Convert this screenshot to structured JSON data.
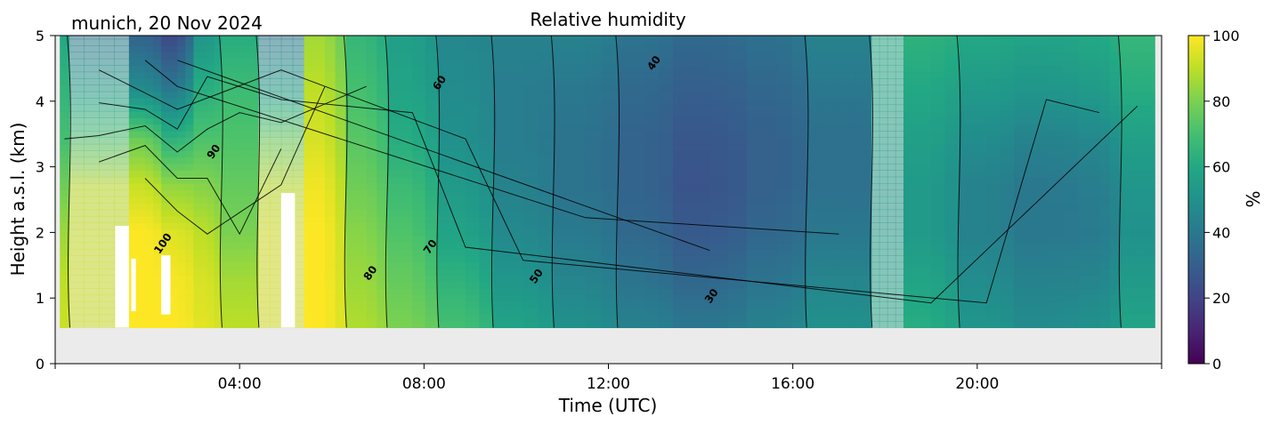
{
  "chart_data": {
    "type": "heatmap",
    "title": "Relative humidity",
    "subtitle": "munich, 20 Nov 2024",
    "xlabel": "Time (UTC)",
    "ylabel": "Height a.s.l. (km)",
    "xlim": [
      0,
      24
    ],
    "ylim": [
      0,
      5
    ],
    "xticks": [
      4,
      8,
      12,
      16,
      20
    ],
    "xtick_labels": [
      "04:00",
      "08:00",
      "12:00",
      "16:00",
      "20:00"
    ],
    "yticks": [
      0,
      1,
      2,
      3,
      4,
      5
    ],
    "ytick_labels": [
      "0",
      "1",
      "2",
      "3",
      "4",
      "5"
    ],
    "colorbar": {
      "label": "%",
      "range": [
        0,
        100
      ],
      "ticks": [
        0,
        20,
        40,
        60,
        80,
        100
      ],
      "tick_labels": [
        "0",
        "20",
        "40",
        "60",
        "80",
        "100"
      ],
      "colormap": "viridis"
    },
    "data_range_km": [
      0.55,
      5.0
    ],
    "data_range_time": [
      0.1,
      23.85
    ],
    "colors": {
      "no_data": "#ebebeb",
      "masked_white": "#ffffff"
    },
    "contour_levels": [
      {
        "value": 30,
        "label": "30"
      },
      {
        "value": 40,
        "label": "40"
      },
      {
        "value": 50,
        "label": "50"
      },
      {
        "value": 60,
        "label": "60"
      },
      {
        "value": 70,
        "label": "70"
      },
      {
        "value": 80,
        "label": "80"
      },
      {
        "value": 90,
        "label": "90"
      },
      {
        "value": 100,
        "label": "100"
      }
    ],
    "contour_label_marks": [
      {
        "text": "100",
        "t": 2.4,
        "h": 1.8
      },
      {
        "text": "90",
        "t": 3.5,
        "h": 3.2
      },
      {
        "text": "80",
        "t": 6.9,
        "h": 1.35
      },
      {
        "text": "70",
        "t": 8.2,
        "h": 1.75
      },
      {
        "text": "60",
        "t": 8.4,
        "h": 4.25
      },
      {
        "text": "50",
        "t": 10.5,
        "h": 1.3
      },
      {
        "text": "40",
        "t": 13.05,
        "h": 4.55
      },
      {
        "text": "30",
        "t": 14.3,
        "h": 1.0
      }
    ],
    "time_columns": [
      {
        "t0": 0.1,
        "t1": 0.3,
        "rh": [
          92,
          90,
          85,
          78,
          70,
          65,
          60
        ]
      },
      {
        "t0": 0.3,
        "t1": 1.6,
        "rh": [
          93,
          93,
          92,
          90,
          72,
          55,
          40
        ],
        "faded": true
      },
      {
        "t0": 1.6,
        "t1": 2.3,
        "rh": [
          100,
          100,
          100,
          92,
          78,
          48,
          32
        ]
      },
      {
        "t0": 2.3,
        "t1": 3.0,
        "rh": [
          100,
          99,
          95,
          84,
          65,
          40,
          22
        ]
      },
      {
        "t0": 3.0,
        "t1": 3.6,
        "rh": [
          96,
          94,
          90,
          82,
          72,
          62,
          52
        ]
      },
      {
        "t0": 3.6,
        "t1": 4.4,
        "rh": [
          90,
          86,
          80,
          76,
          72,
          68,
          62
        ]
      },
      {
        "t0": 4.4,
        "t1": 5.4,
        "rh": [
          94,
          94,
          94,
          90,
          78,
          55,
          40
        ],
        "faded": true
      },
      {
        "t0": 5.4,
        "t1": 6.3,
        "rh": [
          100,
          100,
          100,
          98,
          94,
          90,
          86
        ]
      },
      {
        "t0": 6.3,
        "t1": 7.2,
        "rh": [
          88,
          85,
          82,
          78,
          74,
          70,
          66
        ]
      },
      {
        "t0": 7.2,
        "t1": 8.3,
        "rh": [
          80,
          76,
          72,
          68,
          62,
          58,
          56
        ]
      },
      {
        "t0": 8.3,
        "t1": 9.5,
        "rh": [
          70,
          64,
          58,
          54,
          50,
          48,
          46
        ]
      },
      {
        "t0": 9.5,
        "t1": 10.8,
        "rh": [
          58,
          52,
          47,
          44,
          42,
          42,
          44
        ]
      },
      {
        "t0": 10.8,
        "t1": 12.2,
        "rh": [
          50,
          45,
          41,
          38,
          38,
          40,
          44
        ]
      },
      {
        "t0": 12.2,
        "t1": 13.4,
        "rh": [
          44,
          38,
          34,
          32,
          32,
          34,
          38
        ]
      },
      {
        "t0": 13.4,
        "t1": 15.0,
        "rh": [
          40,
          33,
          28,
          26,
          27,
          30,
          34
        ]
      },
      {
        "t0": 15.0,
        "t1": 16.3,
        "rh": [
          44,
          38,
          33,
          31,
          31,
          33,
          37
        ]
      },
      {
        "t0": 16.3,
        "t1": 17.7,
        "rh": [
          50,
          45,
          40,
          37,
          37,
          40,
          44
        ]
      },
      {
        "t0": 17.7,
        "t1": 18.4,
        "rh": [
          58,
          56,
          54,
          54,
          56,
          58,
          60
        ],
        "faded": true
      },
      {
        "t0": 18.4,
        "t1": 19.6,
        "rh": [
          62,
          58,
          54,
          54,
          56,
          60,
          64
        ]
      },
      {
        "t0": 19.6,
        "t1": 20.8,
        "rh": [
          52,
          48,
          44,
          44,
          48,
          54,
          60
        ]
      },
      {
        "t0": 20.8,
        "t1": 22.2,
        "rh": [
          48,
          44,
          40,
          40,
          44,
          52,
          58
        ]
      },
      {
        "t0": 22.2,
        "t1": 23.1,
        "rh": [
          50,
          45,
          41,
          42,
          46,
          54,
          60
        ]
      },
      {
        "t0": 23.1,
        "t1": 23.85,
        "rh": [
          58,
          54,
          50,
          52,
          56,
          62,
          66
        ]
      }
    ],
    "height_levels_km": [
      0.55,
      1.3,
      2.0,
      2.7,
      3.4,
      4.2,
      5.0
    ],
    "masked_areas": [
      {
        "t0": 1.3,
        "t1": 1.6,
        "h0": 0.55,
        "h1": 2.1
      },
      {
        "t0": 2.3,
        "t1": 2.5,
        "h0": 0.75,
        "h1": 1.65
      },
      {
        "t0": 1.65,
        "t1": 1.75,
        "h0": 0.8,
        "h1": 1.6
      },
      {
        "t0": 4.9,
        "t1": 5.2,
        "h0": 0.55,
        "h1": 2.6
      }
    ]
  }
}
